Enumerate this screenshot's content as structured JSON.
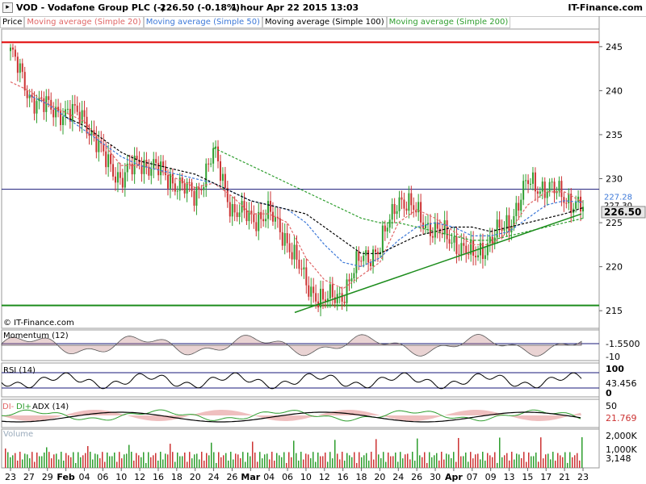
{
  "header": {
    "symbol": "VOD - Vodafone Group PLC (-)",
    "price": "226.50 (-0.18%)",
    "interval_date": "1 hour  Apr 22 2015 13:03",
    "brand": "IT-Finance.com"
  },
  "legend": {
    "price": "Price",
    "ma20": "Moving average (Simple 20)",
    "ma50": "Moving average (Simple 50)",
    "ma100": "Moving average (Simple 100)",
    "ma200": "Moving average (Simple 200)"
  },
  "colors": {
    "ma20": "#e06666",
    "ma50": "#3c78d8",
    "ma100": "#000000",
    "ma200": "#2e9e2e",
    "up_candle": "#2e9e2e",
    "down_candle": "#cc3333",
    "resistance": "#e00000",
    "support": "#1c8c1c",
    "hline": "#1a1a7a"
  },
  "watermark": "© IT-Finance.com",
  "price_panel": {
    "ticks": [
      "245",
      "240",
      "235",
      "230",
      "225",
      "220",
      "215"
    ],
    "tags": [
      "227.28",
      "227.30",
      "226.50"
    ]
  },
  "momentum_panel": {
    "label": "Momentum (12)",
    "ticks": [
      "-1.5500",
      "-10"
    ]
  },
  "rsi_panel": {
    "label": "RSI (14)",
    "ticks": [
      "100",
      "43.456",
      "0"
    ]
  },
  "adx_panel": {
    "label_di_minus": "DI-",
    "label_di_plus": "DI+",
    "label": "ADX (14)",
    "ticks": [
      "50",
      "21.769"
    ]
  },
  "volume_panel": {
    "label": "Volume",
    "ticks": [
      "2,000K",
      "1,000K",
      "3,148"
    ]
  },
  "x_axis": {
    "labels": [
      "23",
      "27",
      "29",
      "Feb",
      "04",
      "06",
      "10",
      "12",
      "16",
      "18",
      "20",
      "24",
      "26",
      "Mar",
      "04",
      "06",
      "10",
      "12",
      "16",
      "18",
      "20",
      "24",
      "26",
      "30",
      "Apr",
      "07",
      "09",
      "13",
      "15",
      "17",
      "21",
      "23"
    ]
  },
  "chart_data": {
    "type": "line",
    "title": "VOD - Vodafone Group PLC (-)",
    "interval": "1 hour",
    "last": 226.5,
    "change_pct": -0.18,
    "ylim": [
      213,
      247
    ],
    "y_ticks": [
      215,
      220,
      225,
      230,
      235,
      240,
      245
    ],
    "x": [
      "23",
      "27",
      "29",
      "Feb",
      "04",
      "06",
      "10",
      "12",
      "16",
      "18",
      "20",
      "24",
      "26",
      "Mar",
      "04",
      "06",
      "10",
      "12",
      "16",
      "18",
      "20",
      "24",
      "26",
      "30",
      "Apr",
      "07",
      "09",
      "13",
      "15",
      "17",
      "21",
      "23"
    ],
    "series": [
      {
        "name": "Price",
        "values": [
          244.5,
          239.5,
          238,
          237.5,
          237,
          232.5,
          230,
          232,
          231,
          229.5,
          228,
          233,
          226.5,
          225.5,
          226,
          223,
          218,
          216,
          217,
          221,
          222,
          228,
          226,
          224,
          223,
          221,
          223,
          225,
          229.5,
          229,
          228,
          226.5
        ]
      },
      {
        "name": "Moving average (Simple 20)",
        "values": [
          241,
          240,
          238.5,
          237.5,
          236.5,
          234,
          231.5,
          231.5,
          231,
          230,
          229,
          229.5,
          228,
          226,
          226,
          225,
          221,
          218.5,
          217.5,
          219,
          220.5,
          225,
          226.5,
          225.5,
          224,
          222.5,
          222.5,
          224,
          227,
          228.5,
          228.5,
          227.3
        ]
      },
      {
        "name": "Moving average (Simple 50)",
        "values": [
          null,
          239.5,
          238.5,
          237,
          235.5,
          234,
          232.5,
          231.5,
          231,
          230.5,
          230,
          229.5,
          228.5,
          227.5,
          227,
          226.5,
          225,
          222.5,
          220.5,
          220,
          221,
          223,
          224.5,
          225,
          224.5,
          223.5,
          223.5,
          224,
          225.5,
          227,
          227.5,
          227.3
        ]
      },
      {
        "name": "Moving average (Simple 100)",
        "values": [
          null,
          null,
          null,
          237,
          236,
          234.5,
          233,
          232,
          231.5,
          231,
          230.5,
          229.5,
          228.5,
          227.5,
          227,
          226.5,
          226,
          224.5,
          223,
          221.5,
          221.5,
          222.5,
          223.5,
          224,
          224.5,
          224.5,
          224,
          224.5,
          225,
          225.5,
          226,
          226.7
        ]
      },
      {
        "name": "Moving average (Simple 200)",
        "values": [
          null,
          null,
          null,
          null,
          null,
          null,
          null,
          null,
          null,
          null,
          null,
          233.5,
          232.5,
          231.5,
          230.5,
          229.5,
          228.5,
          227.5,
          226.5,
          225.5,
          225,
          225,
          224.5,
          224,
          223.5,
          223,
          223,
          223.5,
          224,
          224.5,
          225,
          225.5
        ]
      }
    ],
    "horizontal_lines": [
      {
        "value": 245.5,
        "color": "#e00000"
      },
      {
        "value": 228.8,
        "color": "#1a1a7a"
      },
      {
        "value": 215.6,
        "color": "#1c8c1c"
      }
    ],
    "trendline": {
      "from": {
        "x": "08",
        "y": 214.8
      },
      "to": {
        "x": "22",
        "y": 226
      }
    }
  }
}
